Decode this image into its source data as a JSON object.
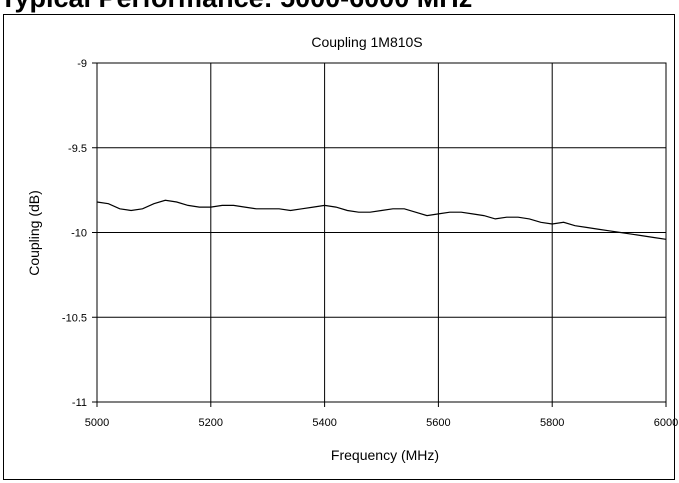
{
  "heading": "Typical Performance: 5000-6000 MHz",
  "chart_data": {
    "type": "line",
    "title": "Coupling 1M810S",
    "xlabel": "Frequency (MHz)",
    "ylabel": "Coupling (dB)",
    "xlim": [
      5000,
      6000
    ],
    "ylim": [
      -11,
      -9
    ],
    "xticks": [
      "5000",
      "5200",
      "5400",
      "5600",
      "5800",
      "6000"
    ],
    "yticks": [
      "-9",
      "-9.5",
      "-10",
      "-10.5",
      "-11"
    ],
    "grid": true,
    "legend": "none",
    "series": [
      {
        "color": "#000000",
        "x": [
          5000,
          5020,
          5040,
          5060,
          5080,
          5100,
          5120,
          5140,
          5160,
          5180,
          5200,
          5220,
          5240,
          5260,
          5280,
          5300,
          5320,
          5340,
          5360,
          5380,
          5400,
          5420,
          5440,
          5460,
          5480,
          5500,
          5520,
          5540,
          5560,
          5580,
          5600,
          5620,
          5640,
          5660,
          5680,
          5700,
          5720,
          5740,
          5760,
          5780,
          5800,
          5820,
          5840,
          5860,
          5880,
          5900,
          5920,
          5940,
          5960,
          5980,
          6000
        ],
        "values": [
          -9.82,
          -9.83,
          -9.86,
          -9.87,
          -9.86,
          -9.83,
          -9.81,
          -9.82,
          -9.84,
          -9.85,
          -9.85,
          -9.84,
          -9.84,
          -9.85,
          -9.86,
          -9.86,
          -9.86,
          -9.87,
          -9.86,
          -9.85,
          -9.84,
          -9.85,
          -9.87,
          -9.88,
          -9.88,
          -9.87,
          -9.86,
          -9.86,
          -9.88,
          -9.9,
          -9.89,
          -9.88,
          -9.88,
          -9.89,
          -9.9,
          -9.92,
          -9.91,
          -9.91,
          -9.92,
          -9.94,
          -9.95,
          -9.94,
          -9.96,
          -9.97,
          -9.98,
          -9.99,
          -10.0,
          -10.01,
          -10.02,
          -10.03,
          -10.04
        ]
      }
    ]
  }
}
